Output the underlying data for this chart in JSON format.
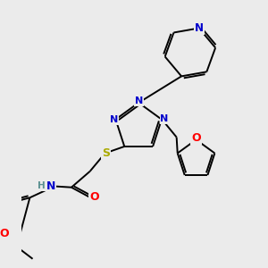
{
  "background_color": "#ebebeb",
  "atom_colors": {
    "C": "#000000",
    "N": "#0000cc",
    "O": "#ff0000",
    "S": "#aaaa00",
    "H": "#5a9090"
  },
  "figsize": [
    3.0,
    3.0
  ],
  "dpi": 100
}
